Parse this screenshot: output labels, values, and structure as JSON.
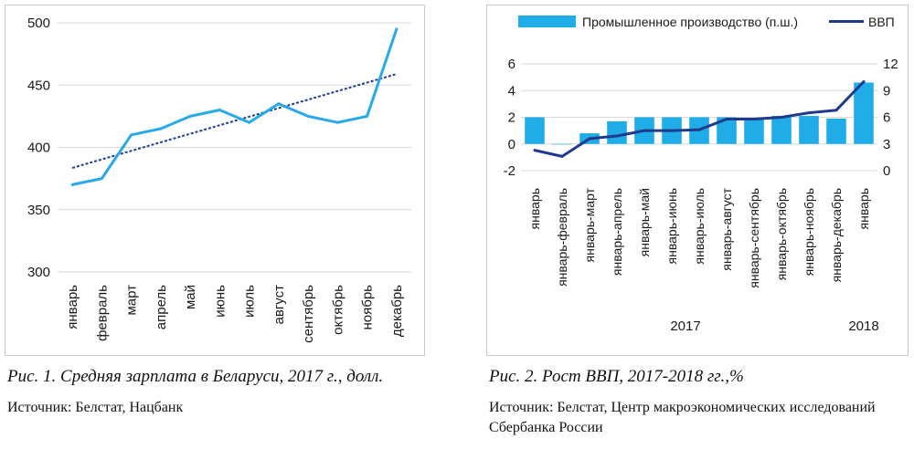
{
  "figure1": {
    "caption": "Рис. 1. Средняя зарплата в Беларуси, 2017 г., долл.",
    "source": "Источник: Белстат, Нацбанк"
  },
  "figure2": {
    "caption": "Рис. 2. Рост ВВП, 2017-2018 гг.,%",
    "source": "Источник: Белстат, Центр макроэкономических исследований Сбербанка России"
  },
  "colors": {
    "salary_line": "#29a9e8",
    "trend_line": "#1f3f8f",
    "bars": "#20ace6",
    "gdp_line": "#1f3a8a",
    "grid": "#d9d9d9"
  },
  "chart_data": [
    {
      "type": "line",
      "categories": [
        "январь",
        "февраль",
        "март",
        "апрель",
        "май",
        "июнь",
        "июль",
        "август",
        "сентябрь",
        "октябрь",
        "ноябрь",
        "декабрь"
      ],
      "series": [
        {
          "values": [
            370,
            375,
            410,
            415,
            425,
            430,
            420,
            435,
            425,
            420,
            425,
            495
          ],
          "style": "solid"
        },
        {
          "values": [
            383.5,
            390.4,
            397.2,
            404.1,
            410.9,
            417.8,
            424.6,
            431.5,
            438.3,
            445.2,
            452.0,
            458.9
          ],
          "style": "dotted",
          "role": "trend"
        }
      ],
      "ylim": [
        300,
        500
      ],
      "yticks": [
        300,
        350,
        400,
        450,
        500
      ],
      "grid": true,
      "legend": "none"
    },
    {
      "type": "bar",
      "categories": [
        "январь",
        "январь-февраль",
        "январь-март",
        "январь-апрель",
        "январь-май",
        "январь-июнь",
        "январь-июль",
        "январь-август",
        "январь-сентябрь",
        "январь-октябрь",
        "январь-ноябрь",
        "январь-декабрь",
        "январь"
      ],
      "year_labels": [
        {
          "label": "2017",
          "from": 0,
          "to": 11
        },
        {
          "label": "2018",
          "from": 12,
          "to": 12
        }
      ],
      "series": [
        {
          "name": "Промышленное производство (п.ш.)",
          "type": "bar",
          "axis": "left",
          "values": [
            2.0,
            0.0,
            0.8,
            1.7,
            2.0,
            2.0,
            2.0,
            2.0,
            1.9,
            2.1,
            2.1,
            1.9,
            4.6
          ]
        },
        {
          "name": "ВВП",
          "type": "line",
          "axis": "right",
          "values": [
            2.3,
            1.6,
            3.6,
            3.9,
            4.5,
            4.5,
            4.6,
            5.8,
            5.8,
            6.0,
            6.5,
            6.8,
            10.0
          ]
        }
      ],
      "ylim_left": [
        -2,
        6
      ],
      "yticks_left": [
        -2,
        0,
        2,
        4,
        6
      ],
      "ylim_right": [
        0,
        12
      ],
      "yticks_right": [
        0,
        3,
        6,
        9,
        12
      ],
      "grid": true,
      "legend": "top"
    }
  ]
}
